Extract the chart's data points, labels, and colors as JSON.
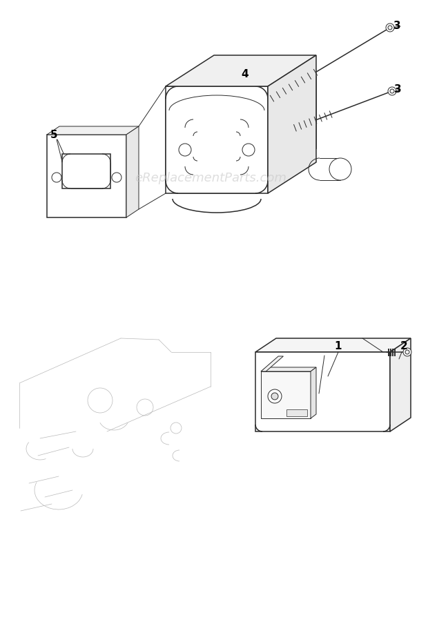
{
  "background_color": "#ffffff",
  "watermark_text": "eReplacementParts.com",
  "watermark_color": "#c8c8c8",
  "watermark_fontsize": 13,
  "line_color": "#2a2a2a",
  "label_color": "#000000",
  "label_fontsize": 11,
  "fig_width": 6.2,
  "fig_height": 9.01,
  "dpi": 100,
  "lw_main": 1.1,
  "lw_thin": 0.7,
  "lw_ghost": 0.5
}
